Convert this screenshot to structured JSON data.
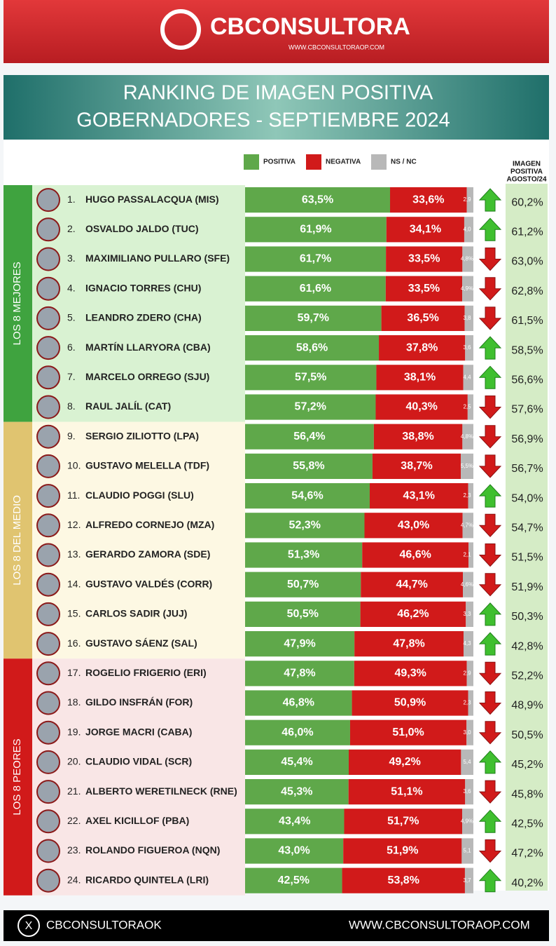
{
  "header": {
    "brand": "CBCONSULTORA",
    "url": "WWW.CBCONSULTORAOP.COM"
  },
  "chart_data": {
    "type": "stacked-bar",
    "title": "RANKING DE IMAGEN POSITIVA",
    "subtitle": "GOBERNADORES - SEPTIEMBRE 2024",
    "ranks": [
      "1.",
      "2.",
      "3.",
      "4.",
      "5.",
      "6.",
      "7.",
      "8.",
      "9.",
      "10.",
      "11.",
      "12.",
      "13.",
      "14.",
      "15.",
      "16.",
      "17.",
      "18.",
      "19.",
      "20.",
      "21.",
      "22.",
      "23.",
      "24."
    ],
    "categories": [
      "HUGO PASSALACQUA (MIS)",
      "OSVALDO JALDO (TUC)",
      "MAXIMILIANO PULLARO (SFE)",
      "IGNACIO TORRES (CHU)",
      "LEANDRO ZDERO (CHA)",
      "MARTÍN LLARYORA (CBA)",
      "MARCELO ORREGO (SJU)",
      "RAUL JALÍL (CAT)",
      "SERGIO ZILIOTTO (LPA)",
      "GUSTAVO MELELLA (TDF)",
      "CLAUDIO POGGI (SLU)",
      "ALFREDO CORNEJO (MZA)",
      "GERARDO ZAMORA (SDE)",
      "GUSTAVO VALDÉS (CORR)",
      "CARLOS SADIR (JUJ)",
      "GUSTAVO SÁENZ (SAL)",
      "ROGELIO FRIGERIO (ERI)",
      "GILDO INSFRÁN (FOR)",
      "JORGE MACRI (CABA)",
      "CLAUDIO VIDAL (SCR)",
      "ALBERTO WERETILNECK (RNE)",
      "AXEL KICILLOF (PBA)",
      "ROLANDO FIGUEROA (NQN)",
      "RICARDO QUINTELA (LRI)"
    ],
    "xlim": [
      0,
      100
    ],
    "series": [
      {
        "name": "POSITIVA",
        "color": "#5fa84a",
        "values": [
          63.5,
          61.9,
          61.7,
          61.6,
          59.7,
          58.6,
          57.5,
          57.2,
          56.4,
          55.8,
          54.6,
          52.3,
          51.3,
          50.7,
          50.5,
          47.9,
          47.8,
          46.8,
          46.0,
          45.4,
          45.3,
          43.4,
          43.0,
          42.5
        ],
        "value_labels": [
          "63,5%",
          "61,9%",
          "61,7%",
          "61,6%",
          "59,7%",
          "58,6%",
          "57,5%",
          "57,2%",
          "56,4%",
          "55,8%",
          "54,6%",
          "52,3%",
          "51,3%",
          "50,7%",
          "50,5%",
          "47,9%",
          "47,8%",
          "46,8%",
          "46,0%",
          "45,4%",
          "45,3%",
          "43,4%",
          "43,0%",
          "42,5%"
        ]
      },
      {
        "name": "NEGATIVA",
        "color": "#d11a1a",
        "values": [
          33.6,
          34.1,
          33.5,
          33.5,
          36.5,
          37.8,
          38.1,
          40.3,
          38.8,
          38.7,
          43.1,
          43.0,
          46.6,
          44.7,
          46.2,
          47.8,
          49.3,
          50.9,
          51.0,
          49.2,
          51.1,
          51.7,
          51.9,
          53.8
        ],
        "value_labels": [
          "33,6%",
          "34,1%",
          "33,5%",
          "33,5%",
          "36,5%",
          "37,8%",
          "38,1%",
          "40,3%",
          "38,8%",
          "38,7%",
          "43,1%",
          "43,0%",
          "46,6%",
          "44,7%",
          "46,2%",
          "47,8%",
          "49,3%",
          "50,9%",
          "51,0%",
          "49,2%",
          "51,1%",
          "51,7%",
          "51,9%",
          "53,8%"
        ]
      },
      {
        "name": "NS / NC",
        "color": "#b8b8b8",
        "values": [
          2.9,
          4.0,
          4.8,
          4.9,
          3.8,
          3.6,
          4.4,
          2.5,
          4.8,
          5.5,
          2.3,
          4.7,
          2.1,
          4.6,
          3.3,
          4.3,
          2.9,
          2.3,
          3.0,
          5.4,
          3.6,
          4.9,
          5.1,
          3.7
        ],
        "value_labels": [
          "2,9",
          "4,0",
          "4,8%",
          "4,9%",
          "3,8",
          "3,6",
          "4,4",
          "2,5",
          "4,8%",
          "5,5%",
          "2,3",
          "4,7%",
          "2,1",
          "4,6%",
          "3,3",
          "4,3",
          "2,9",
          "2,3",
          "3,0",
          "5,4",
          "3,6",
          "4,9%",
          "5,1",
          "3,7"
        ]
      }
    ],
    "trend": [
      "up",
      "up",
      "down",
      "down",
      "down",
      "up",
      "up",
      "down",
      "down",
      "down",
      "up",
      "down",
      "down",
      "down",
      "up",
      "up",
      "down",
      "down",
      "down",
      "up",
      "down",
      "up",
      "down",
      "up"
    ],
    "previous": {
      "title": [
        "IMAGEN",
        "POSITIVA",
        "AGOSTO/24"
      ],
      "labels": [
        "60,2%",
        "61,2%",
        "63,0%",
        "62,8%",
        "61,5%",
        "58,5%",
        "56,6%",
        "57,6%",
        "56,9%",
        "56,7%",
        "54,0%",
        "54,7%",
        "51,5%",
        "51,9%",
        "50,3%",
        "42,8%",
        "52,2%",
        "48,9%",
        "50,5%",
        "45,2%",
        "45,8%",
        "42,5%",
        "47,2%",
        "40,2%"
      ]
    },
    "groups": [
      {
        "label": "LOS 8 MEJORES",
        "count": 8,
        "color": "#3fa33f",
        "background": "#d9f2d2"
      },
      {
        "label": "LOS 8 DEL MEDIO",
        "count": 8,
        "color": "#e0c470",
        "background": "#fdf8e3"
      },
      {
        "label": "LOS 8 PEORES",
        "count": 8,
        "color": "#d11a1a",
        "background": "#f9e6e6"
      }
    ]
  },
  "footer": {
    "social": "CBCONSULTORAOK",
    "url": "WWW.CBCONSULTORAOP.COM"
  }
}
